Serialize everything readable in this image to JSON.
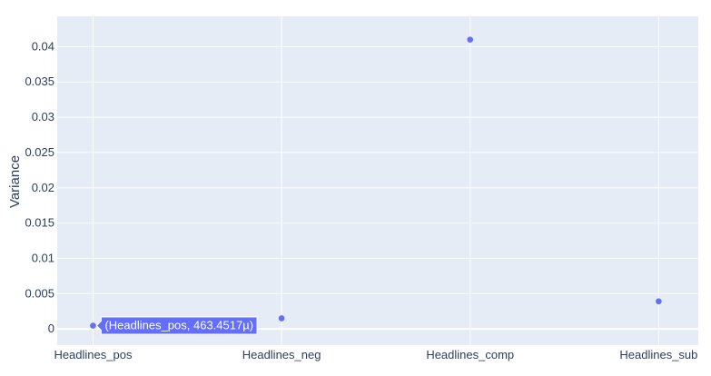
{
  "chart_data": {
    "type": "scatter",
    "categories": [
      "Headlines_pos",
      "Headlines_neg",
      "Headlines_comp",
      "Headlines_sub"
    ],
    "values": [
      0.0004634517,
      0.0015,
      0.041,
      0.0039
    ],
    "ylabel": "Variance",
    "xlabel": "",
    "ylim": [
      -0.0023,
      0.0443
    ],
    "yticks": [
      0,
      0.005,
      0.01,
      0.015,
      0.02,
      0.025,
      0.03,
      0.035,
      0.04
    ],
    "ytick_labels": [
      "0",
      "0.005",
      "0.01",
      "0.015",
      "0.02",
      "0.025",
      "0.03",
      "0.035",
      "0.04"
    ],
    "marker_color": "#636efa",
    "plot_bg": "#e5ecf6",
    "grid": true,
    "hover": {
      "point_index": 0,
      "text": "(Headlines_pos, 463.4517µ)"
    }
  }
}
